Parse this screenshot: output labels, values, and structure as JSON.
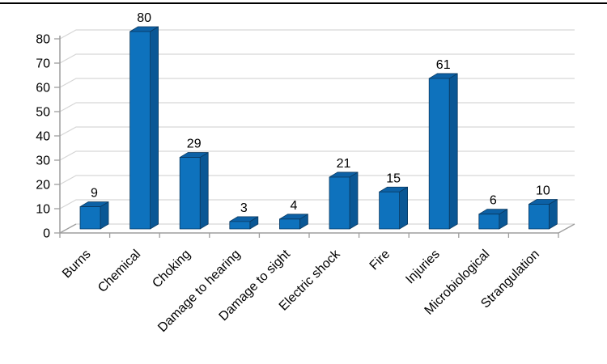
{
  "page": {
    "background_color": "#ffffff",
    "top_border_color": "#000000"
  },
  "chart_data": {
    "type": "bar",
    "style": "3d-column",
    "title": "",
    "xlabel": "",
    "ylabel": "",
    "categories": [
      "Burns",
      "Chemical",
      "Choking",
      "Damage to hearing",
      "Damage to sight",
      "Electric shock",
      "Fire",
      "Injuries",
      "Microbiological",
      "Strangulation"
    ],
    "values": [
      9,
      80,
      29,
      3,
      4,
      21,
      15,
      61,
      6,
      10
    ],
    "data_labels_shown": true,
    "ylim": [
      0,
      80
    ],
    "yticks": [
      0,
      10,
      20,
      30,
      40,
      50,
      60,
      70,
      80
    ],
    "grid": true,
    "legend": "none",
    "category_label_rotation_deg": -45,
    "colors": {
      "bar_front": "#0E72BD",
      "bar_side": "#0A5795",
      "bar_top": "#0C61A6",
      "bar_outline": "#0B3A61",
      "gridline": "#D6D6D6",
      "axis_line": "#9E9E9E",
      "text": "#000000"
    }
  }
}
